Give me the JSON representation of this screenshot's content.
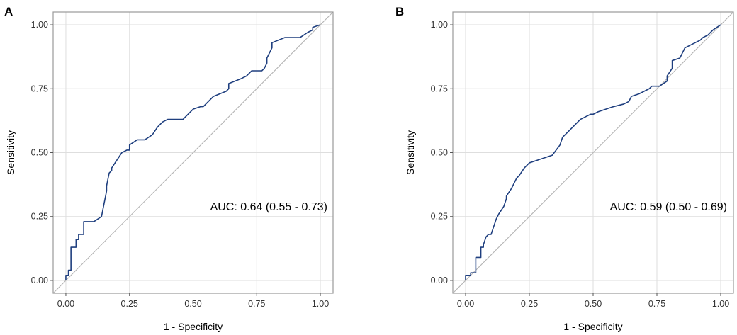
{
  "colors": {
    "roc": "#1f3f7f",
    "diagonal": "#b4b4b4",
    "grid": "#dedede"
  },
  "chart_data": [
    {
      "panel": "A",
      "type": "line",
      "xlabel": "1 - Specificity",
      "ylabel": "Sensitivity",
      "xlim": [
        -0.05,
        1.05
      ],
      "ylim": [
        -0.05,
        1.05
      ],
      "xticks": [
        "0.00",
        "0.25",
        "0.50",
        "0.75",
        "1.00"
      ],
      "yticks": [
        "0.00",
        "0.25",
        "0.50",
        "0.75",
        "1.00"
      ],
      "annotation": "AUC: 0.64 (0.55 - 0.73)",
      "series": [
        {
          "name": "ROC",
          "x": [
            0,
            0,
            0.01,
            0.01,
            0.02,
            0.02,
            0.04,
            0.04,
            0.05,
            0.05,
            0.07,
            0.07,
            0.11,
            0.14,
            0.15,
            0.16,
            0.16,
            0.17,
            0.18,
            0.18,
            0.2,
            0.22,
            0.24,
            0.25,
            0.25,
            0.28,
            0.31,
            0.34,
            0.36,
            0.38,
            0.4,
            0.44,
            0.46,
            0.47,
            0.5,
            0.53,
            0.54,
            0.56,
            0.58,
            0.63,
            0.64,
            0.64,
            0.69,
            0.71,
            0.73,
            0.74,
            0.77,
            0.78,
            0.79,
            0.79,
            0.81,
            0.81,
            0.86,
            0.88,
            0.92,
            0.95,
            0.97,
            0.97,
            1.0
          ],
          "y": [
            0,
            0.02,
            0.02,
            0.04,
            0.04,
            0.13,
            0.13,
            0.16,
            0.16,
            0.18,
            0.18,
            0.23,
            0.23,
            0.25,
            0.3,
            0.35,
            0.37,
            0.42,
            0.43,
            0.44,
            0.47,
            0.5,
            0.51,
            0.51,
            0.53,
            0.55,
            0.55,
            0.57,
            0.6,
            0.62,
            0.63,
            0.63,
            0.63,
            0.64,
            0.67,
            0.68,
            0.68,
            0.7,
            0.72,
            0.74,
            0.75,
            0.77,
            0.79,
            0.8,
            0.82,
            0.82,
            0.82,
            0.83,
            0.85,
            0.87,
            0.91,
            0.93,
            0.95,
            0.95,
            0.95,
            0.97,
            0.98,
            0.99,
            1.0
          ]
        }
      ]
    },
    {
      "panel": "B",
      "type": "line",
      "xlabel": "1 - Specificity",
      "ylabel": "Sensitivity",
      "xlim": [
        -0.05,
        1.05
      ],
      "ylim": [
        -0.05,
        1.05
      ],
      "xticks": [
        "0.00",
        "0.25",
        "0.50",
        "0.75",
        "1.00"
      ],
      "yticks": [
        "0.00",
        "0.25",
        "0.50",
        "0.75",
        "1.00"
      ],
      "annotation": "AUC: 0.59 (0.50 - 0.69)",
      "series": [
        {
          "name": "ROC",
          "x": [
            0,
            0,
            0.02,
            0.02,
            0.04,
            0.04,
            0.06,
            0.06,
            0.07,
            0.07,
            0.08,
            0.09,
            0.1,
            0.11,
            0.12,
            0.13,
            0.15,
            0.16,
            0.16,
            0.18,
            0.2,
            0.21,
            0.23,
            0.25,
            0.28,
            0.31,
            0.34,
            0.37,
            0.38,
            0.4,
            0.42,
            0.45,
            0.47,
            0.49,
            0.5,
            0.52,
            0.55,
            0.58,
            0.62,
            0.64,
            0.65,
            0.68,
            0.72,
            0.73,
            0.76,
            0.79,
            0.79,
            0.81,
            0.81,
            0.84,
            0.86,
            0.88,
            0.9,
            0.92,
            0.93,
            0.95,
            0.96,
            0.97,
            1.0
          ],
          "y": [
            0,
            0.02,
            0.02,
            0.03,
            0.03,
            0.09,
            0.09,
            0.13,
            0.13,
            0.14,
            0.17,
            0.18,
            0.18,
            0.21,
            0.24,
            0.26,
            0.29,
            0.32,
            0.33,
            0.36,
            0.4,
            0.41,
            0.44,
            0.46,
            0.47,
            0.48,
            0.49,
            0.53,
            0.56,
            0.58,
            0.6,
            0.63,
            0.64,
            0.65,
            0.65,
            0.66,
            0.67,
            0.68,
            0.69,
            0.7,
            0.72,
            0.73,
            0.75,
            0.76,
            0.76,
            0.78,
            0.8,
            0.83,
            0.86,
            0.87,
            0.91,
            0.92,
            0.93,
            0.94,
            0.95,
            0.96,
            0.97,
            0.98,
            1.0
          ]
        }
      ]
    }
  ]
}
